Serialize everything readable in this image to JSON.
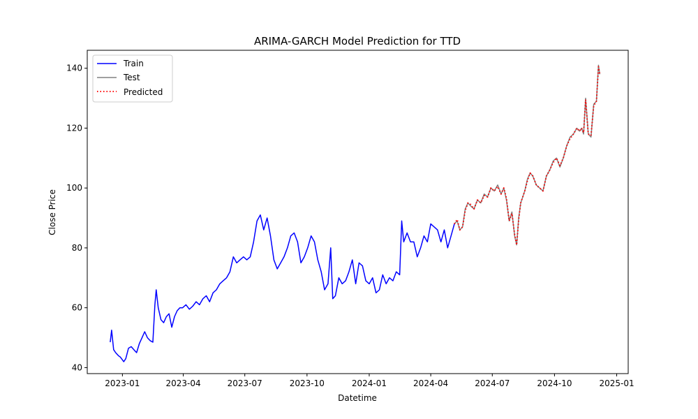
{
  "chart_data": {
    "type": "line",
    "title": "ARIMA-GARCH Model Prediction for TTD",
    "xlabel": "Datetime",
    "ylabel": "Close Price",
    "xlim": [
      "2022-11-10",
      "2025-01-18"
    ],
    "ylim": [
      38,
      146
    ],
    "x_ticks": [
      "2023-01",
      "2023-04",
      "2023-07",
      "2023-10",
      "2024-01",
      "2024-04",
      "2024-07",
      "2024-10",
      "2025-01"
    ],
    "y_ticks": [
      40,
      60,
      80,
      100,
      120,
      140
    ],
    "grid": false,
    "legend_position": "upper left",
    "series": [
      {
        "name": "Train",
        "color": "#0000ff",
        "style": "solid",
        "x": [
          "2022-12-14",
          "2022-12-16",
          "2022-12-19",
          "2022-12-22",
          "2022-12-26",
          "2022-12-29",
          "2023-01-03",
          "2023-01-06",
          "2023-01-10",
          "2023-01-14",
          "2023-01-18",
          "2023-01-22",
          "2023-01-26",
          "2023-01-30",
          "2023-02-03",
          "2023-02-07",
          "2023-02-11",
          "2023-02-15",
          "2023-02-18",
          "2023-02-20",
          "2023-02-23",
          "2023-02-27",
          "2023-03-03",
          "2023-03-07",
          "2023-03-11",
          "2023-03-15",
          "2023-03-19",
          "2023-03-23",
          "2023-03-27",
          "2023-03-31",
          "2023-04-05",
          "2023-04-10",
          "2023-04-15",
          "2023-04-20",
          "2023-04-25",
          "2023-04-30",
          "2023-05-05",
          "2023-05-10",
          "2023-05-15",
          "2023-05-20",
          "2023-05-25",
          "2023-05-30",
          "2023-06-04",
          "2023-06-09",
          "2023-06-14",
          "2023-06-19",
          "2023-06-24",
          "2023-06-29",
          "2023-07-04",
          "2023-07-09",
          "2023-07-14",
          "2023-07-19",
          "2023-07-24",
          "2023-07-29",
          "2023-08-03",
          "2023-08-08",
          "2023-08-13",
          "2023-08-18",
          "2023-08-23",
          "2023-08-28",
          "2023-09-02",
          "2023-09-07",
          "2023-09-12",
          "2023-09-17",
          "2023-09-22",
          "2023-09-27",
          "2023-10-02",
          "2023-10-07",
          "2023-10-12",
          "2023-10-17",
          "2023-10-22",
          "2023-10-27",
          "2023-11-01",
          "2023-11-05",
          "2023-11-08",
          "2023-11-12",
          "2023-11-17",
          "2023-11-22",
          "2023-11-27",
          "2023-12-02",
          "2023-12-07",
          "2023-12-12",
          "2023-12-17",
          "2023-12-22",
          "2023-12-27",
          "2024-01-01",
          "2024-01-06",
          "2024-01-11",
          "2024-01-16",
          "2024-01-21",
          "2024-01-26",
          "2024-01-31",
          "2024-02-05",
          "2024-02-10",
          "2024-02-15",
          "2024-02-18",
          "2024-02-21",
          "2024-02-26",
          "2024-03-02",
          "2024-03-07",
          "2024-03-12",
          "2024-03-17",
          "2024-03-22",
          "2024-03-27",
          "2024-04-01",
          "2024-04-06",
          "2024-04-11",
          "2024-04-16",
          "2024-04-21",
          "2024-04-26",
          "2024-05-01",
          "2024-05-06"
        ],
        "y": [
          48.5,
          52.5,
          46,
          45,
          44,
          43.5,
          42,
          43,
          46.5,
          47,
          46,
          45,
          48,
          50,
          52,
          50,
          49,
          48.5,
          61,
          66,
          60,
          56,
          55,
          57,
          58,
          53.5,
          57,
          59,
          60,
          60,
          61,
          59.5,
          60.5,
          62,
          61,
          63,
          64,
          62,
          65,
          66,
          68,
          69,
          70,
          72,
          77,
          75,
          76,
          77,
          76,
          77,
          82,
          89,
          91,
          86,
          90,
          84,
          76,
          73,
          75,
          77,
          80,
          84,
          85,
          82,
          75,
          77,
          80,
          84,
          82,
          76,
          72,
          66,
          68,
          80,
          63,
          64,
          70,
          68,
          69,
          72,
          76,
          68,
          75,
          74,
          69,
          68,
          70,
          65,
          66,
          71,
          68,
          70,
          69,
          72,
          71,
          89,
          82,
          85,
          82,
          82,
          77,
          80,
          84,
          82,
          88,
          87,
          86,
          82,
          86,
          80,
          84,
          88
        ]
      },
      {
        "name": "Test",
        "color": "#808080",
        "style": "solid",
        "x": [
          "2024-05-06",
          "2024-05-10",
          "2024-05-14",
          "2024-05-18",
          "2024-05-22",
          "2024-05-26",
          "2024-05-30",
          "2024-06-04",
          "2024-06-09",
          "2024-06-14",
          "2024-06-19",
          "2024-06-24",
          "2024-06-29",
          "2024-07-04",
          "2024-07-09",
          "2024-07-14",
          "2024-07-18",
          "2024-07-22",
          "2024-07-26",
          "2024-07-30",
          "2024-08-03",
          "2024-08-06",
          "2024-08-09",
          "2024-08-12",
          "2024-08-15",
          "2024-08-18",
          "2024-08-22",
          "2024-08-26",
          "2024-08-30",
          "2024-09-04",
          "2024-09-09",
          "2024-09-14",
          "2024-09-19",
          "2024-09-24",
          "2024-09-29",
          "2024-10-04",
          "2024-10-09",
          "2024-10-14",
          "2024-10-19",
          "2024-10-24",
          "2024-10-29",
          "2024-11-03",
          "2024-11-07",
          "2024-11-10",
          "2024-11-13",
          "2024-11-16",
          "2024-11-20",
          "2024-11-24",
          "2024-11-28",
          "2024-12-02",
          "2024-12-05",
          "2024-12-07"
        ],
        "y": [
          88,
          89,
          86,
          87,
          93,
          95,
          94,
          93,
          96,
          95,
          98,
          97,
          100,
          99,
          101,
          98,
          100,
          96,
          89,
          92,
          84,
          81,
          90,
          95,
          97,
          99,
          103,
          105,
          104,
          101,
          100,
          99,
          104,
          106,
          109,
          110,
          107,
          110,
          114,
          117,
          118,
          120,
          119,
          120,
          118,
          130,
          118,
          117,
          128,
          129,
          141,
          138
        ]
      },
      {
        "name": "Predicted",
        "color": "#ff0000",
        "style": "dotted",
        "x": [
          "2024-05-06",
          "2024-05-10",
          "2024-05-14",
          "2024-05-18",
          "2024-05-22",
          "2024-05-26",
          "2024-05-30",
          "2024-06-04",
          "2024-06-09",
          "2024-06-14",
          "2024-06-19",
          "2024-06-24",
          "2024-06-29",
          "2024-07-04",
          "2024-07-09",
          "2024-07-14",
          "2024-07-18",
          "2024-07-22",
          "2024-07-26",
          "2024-07-30",
          "2024-08-03",
          "2024-08-06",
          "2024-08-09",
          "2024-08-12",
          "2024-08-15",
          "2024-08-18",
          "2024-08-22",
          "2024-08-26",
          "2024-08-30",
          "2024-09-04",
          "2024-09-09",
          "2024-09-14",
          "2024-09-19",
          "2024-09-24",
          "2024-09-29",
          "2024-10-04",
          "2024-10-09",
          "2024-10-14",
          "2024-10-19",
          "2024-10-24",
          "2024-10-29",
          "2024-11-03",
          "2024-11-07",
          "2024-11-10",
          "2024-11-13",
          "2024-11-16",
          "2024-11-20",
          "2024-11-24",
          "2024-11-28",
          "2024-12-02",
          "2024-12-05",
          "2024-12-07"
        ],
        "y": [
          88,
          89.5,
          86,
          87,
          92.5,
          95,
          94.5,
          93,
          96,
          95,
          97.5,
          97,
          100,
          99,
          100.5,
          98,
          100,
          96.5,
          89,
          91.5,
          84.5,
          81,
          89.5,
          95,
          97,
          99,
          102.5,
          105,
          104,
          101,
          100,
          99,
          104,
          106,
          108.5,
          110,
          107.5,
          110,
          114,
          116.5,
          118,
          120,
          119,
          120,
          118.5,
          129.5,
          118,
          117.5,
          127.5,
          129,
          140.5,
          138
        ]
      }
    ]
  }
}
